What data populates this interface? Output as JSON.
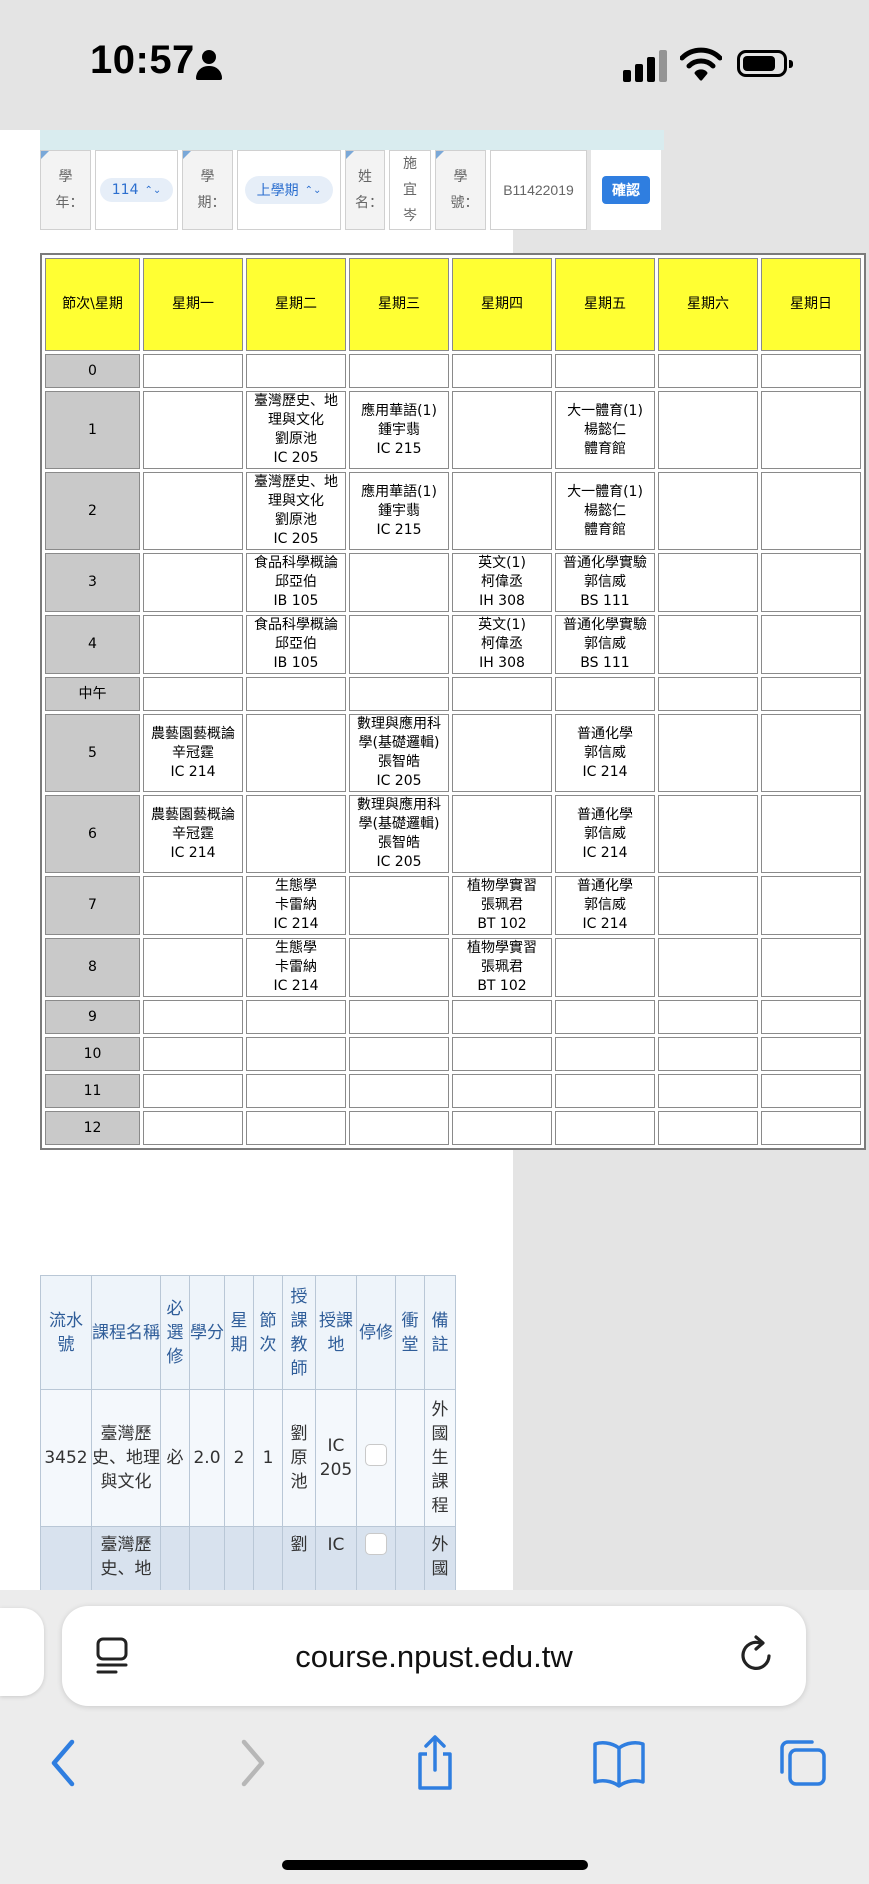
{
  "status": {
    "time": "10:57"
  },
  "filters": {
    "year_label": "學年：",
    "year_value": "114",
    "term_label": "學期：",
    "term_value": "上學期",
    "name_label": "姓名：",
    "name_value": "施宜岑",
    "id_label": "學號：",
    "id_value": "B11422019",
    "confirm_label": "確認"
  },
  "timetable": {
    "corner": "節次\\星期",
    "days": [
      "星期一",
      "星期二",
      "星期三",
      "星期四",
      "星期五",
      "星期六",
      "星期日"
    ],
    "rows": [
      {
        "period": "0",
        "cells": [
          "",
          "",
          "",
          "",
          "",
          "",
          ""
        ]
      },
      {
        "period": "1",
        "cells": [
          "",
          "臺灣歷史、地\n理與文化\n劉原池\nIC 205",
          "應用華語(1)\n鍾宇翡\nIC 215",
          "",
          "大一體育(1)\n楊懿仁\n體育館",
          "",
          ""
        ]
      },
      {
        "period": "2",
        "cells": [
          "",
          "臺灣歷史、地\n理與文化\n劉原池\nIC 205",
          "應用華語(1)\n鍾宇翡\nIC 215",
          "",
          "大一體育(1)\n楊懿仁\n體育館",
          "",
          ""
        ]
      },
      {
        "period": "3",
        "cells": [
          "",
          "食品科學概論\n邱亞伯\nIB 105",
          "",
          "英文(1)\n柯偉丞\nIH 308",
          "普通化學實驗\n郭信威\nBS 111",
          "",
          ""
        ]
      },
      {
        "period": "4",
        "cells": [
          "",
          "食品科學概論\n邱亞伯\nIB 105",
          "",
          "英文(1)\n柯偉丞\nIH 308",
          "普通化學實驗\n郭信威\nBS 111",
          "",
          ""
        ]
      },
      {
        "period": "中午",
        "cells": [
          "",
          "",
          "",
          "",
          "",
          "",
          ""
        ]
      },
      {
        "period": "5",
        "cells": [
          "農藝園藝概論\n辛冠霆\nIC 214",
          "",
          "數理與應用科\n學(基礎邏輯)\n張智皓\nIC 205",
          "",
          "普通化學\n郭信威\nIC 214",
          "",
          ""
        ]
      },
      {
        "period": "6",
        "cells": [
          "農藝園藝概論\n辛冠霆\nIC 214",
          "",
          "數理與應用科\n學(基礎邏輯)\n張智皓\nIC 205",
          "",
          "普通化學\n郭信威\nIC 214",
          "",
          ""
        ]
      },
      {
        "period": "7",
        "cells": [
          "",
          "生態學\n卡雷納\nIC 214",
          "",
          "植物學實習\n張珮君\nBT 102",
          "普通化學\n郭信威\nIC 214",
          "",
          ""
        ]
      },
      {
        "period": "8",
        "cells": [
          "",
          "生態學\n卡雷納\nIC 214",
          "",
          "植物學實習\n張珮君\nBT 102",
          "",
          "",
          ""
        ]
      },
      {
        "period": "9",
        "cells": [
          "",
          "",
          "",
          "",
          "",
          "",
          ""
        ]
      },
      {
        "period": "10",
        "cells": [
          "",
          "",
          "",
          "",
          "",
          "",
          ""
        ]
      },
      {
        "period": "11",
        "cells": [
          "",
          "",
          "",
          "",
          "",
          "",
          ""
        ]
      },
      {
        "period": "12",
        "cells": [
          "",
          "",
          "",
          "",
          "",
          "",
          ""
        ]
      }
    ]
  },
  "course_list": {
    "headers": [
      "流水號",
      "課程名稱",
      "必選修",
      "學分",
      "星期",
      "節次",
      "授課教師",
      "授課地",
      "停修",
      "衝堂",
      "備註"
    ],
    "rows": [
      {
        "serial": "3452",
        "name": "臺灣歷史、地理與文化",
        "req": "必",
        "credit": "2.0",
        "day": "2",
        "period": "1",
        "teacher": "劉原池",
        "room": "IC 205",
        "conflict": "",
        "note": "外國生課程"
      },
      {
        "serial": "",
        "name": "臺灣歷史、地",
        "req": "",
        "credit": "",
        "day": "",
        "period": "",
        "teacher": "劉",
        "room": "IC",
        "conflict": "",
        "note": "外國"
      }
    ]
  },
  "browser": {
    "url": "course.npust.edu.tw"
  }
}
